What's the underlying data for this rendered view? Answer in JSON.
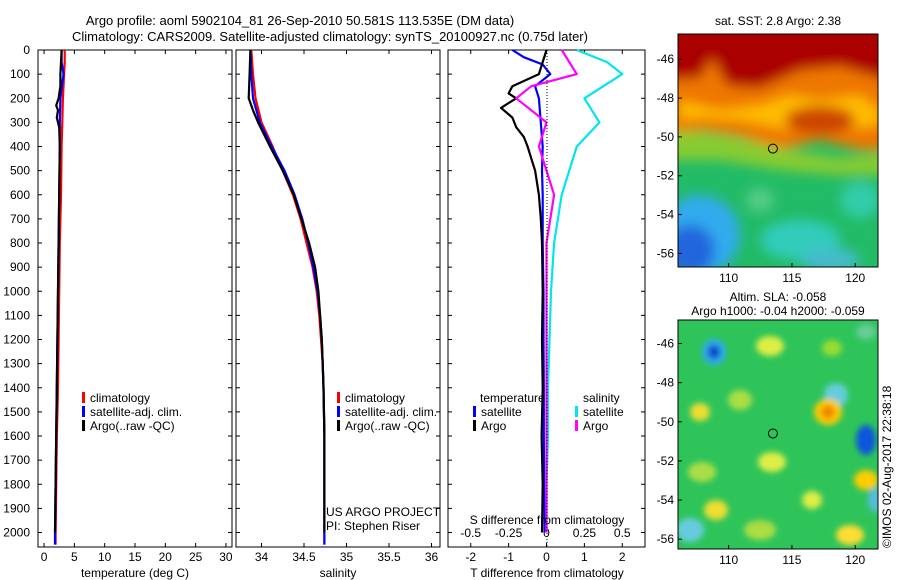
{
  "title_line1": "Argo profile: aoml 5902104_81 26-Sep-2010 50.581S 113.535E (DM data)",
  "title_line2": "Climatology: CARS2009. Satellite-adjusted climatology: synTS_20100927.nc (0.75d later)",
  "watermark": "©IMOS 02-Aug-2017 22:38:18",
  "project_line1": "US ARGO PROJECT",
  "project_line2": "PI: Stephen Riser",
  "colors": {
    "climatology": "#ff0000",
    "satellite": "#0000ff",
    "argo": "#000000",
    "sat_salinity": "#00e5ee",
    "argo_salinity": "#ff00ff"
  },
  "chart_data": [
    {
      "type": "line",
      "name": "temperature-profile",
      "xlabel": "temperature (deg C)",
      "ylabel": "",
      "xlim": [
        -1,
        31
      ],
      "ylim": [
        2060,
        0
      ],
      "xticks": [
        0,
        5,
        10,
        15,
        20,
        25,
        30
      ],
      "yticks": [
        0,
        100,
        200,
        300,
        400,
        500,
        600,
        700,
        800,
        900,
        1000,
        1100,
        1200,
        1300,
        1400,
        1500,
        1600,
        1700,
        1800,
        1900,
        2000
      ],
      "legend": [
        "climatology",
        "satellite-adj. clim.",
        "Argo(..raw -QC)"
      ],
      "series": [
        {
          "name": "climatology",
          "depth": [
            0,
            50,
            100,
            200,
            300,
            400,
            600,
            800,
            1000,
            1200,
            1400,
            1600,
            1800,
            2000,
            2050
          ],
          "values": [
            3.4,
            3.4,
            3.3,
            3.1,
            3.0,
            2.9,
            2.8,
            2.6,
            2.5,
            2.4,
            2.3,
            2.1,
            2.0,
            1.9,
            1.9
          ]
        },
        {
          "name": "satellite-adj. clim.",
          "depth": [
            0,
            50,
            100,
            200,
            300,
            400,
            600,
            800,
            1000,
            1200,
            1400,
            1600,
            1800,
            2000,
            2050
          ],
          "values": [
            2.9,
            2.9,
            3.2,
            2.7,
            2.6,
            2.6,
            2.5,
            2.4,
            2.3,
            2.2,
            2.1,
            2.0,
            1.9,
            1.8,
            1.8
          ]
        },
        {
          "name": "Argo(..raw -QC)",
          "depth": [
            0,
            50,
            100,
            150,
            200,
            230,
            250,
            280,
            320,
            400,
            600,
            800,
            1000,
            1200,
            1400,
            1600,
            1800,
            2000
          ],
          "values": [
            2.9,
            2.8,
            2.7,
            2.7,
            2.4,
            2.0,
            2.3,
            2.1,
            2.5,
            2.6,
            2.5,
            2.4,
            2.3,
            2.2,
            2.1,
            2.0,
            1.9,
            1.8
          ]
        }
      ]
    },
    {
      "type": "line",
      "name": "salinity-profile",
      "xlabel": "salinity",
      "xlim": [
        33.7,
        36.1
      ],
      "ylim": [
        2060,
        0
      ],
      "xticks": [
        34,
        34.5,
        35,
        35.5,
        36
      ],
      "xticklabels": [
        "34",
        "34.5",
        "35",
        "35.5",
        "36"
      ],
      "legend": [
        "climatology",
        "satellite-adj. clim.",
        "Argo(..raw -QC)"
      ],
      "series": [
        {
          "name": "climatology",
          "depth": [
            0,
            100,
            200,
            300,
            400,
            500,
            600,
            700,
            800,
            900,
            1000,
            1100,
            1200,
            1300,
            1400,
            1600,
            1800,
            2050
          ],
          "values": [
            33.88,
            33.9,
            33.93,
            34.0,
            34.13,
            34.25,
            34.37,
            34.46,
            34.53,
            34.6,
            34.65,
            34.68,
            34.7,
            34.72,
            34.73,
            34.74,
            34.74,
            34.74
          ]
        },
        {
          "name": "satellite-adj. clim.",
          "depth": [
            0,
            100,
            200,
            300,
            400,
            500,
            600,
            700,
            800,
            900,
            1000,
            1100,
            1200,
            1300,
            1400,
            1600,
            1800,
            2050
          ],
          "values": [
            33.87,
            33.88,
            33.9,
            33.98,
            34.12,
            34.27,
            34.39,
            34.48,
            34.55,
            34.61,
            34.66,
            34.69,
            34.71,
            34.72,
            34.73,
            34.74,
            34.74,
            34.74
          ]
        },
        {
          "name": "Argo(..raw -QC)",
          "depth": [
            0,
            100,
            200,
            250,
            300,
            400,
            500,
            600,
            700,
            800,
            900,
            1000,
            1100,
            1200,
            1300,
            1400,
            1600,
            1800,
            2000
          ],
          "values": [
            33.87,
            33.86,
            33.85,
            33.9,
            33.96,
            34.1,
            34.25,
            34.38,
            34.47,
            34.56,
            34.63,
            34.67,
            34.69,
            34.71,
            34.72,
            34.73,
            34.74,
            34.74,
            34.74
          ]
        }
      ]
    },
    {
      "type": "line",
      "name": "difference-profile",
      "xlabel": "T difference from climatology",
      "xlabel_top": "S difference from climatology",
      "xlim": [
        -2.6,
        2.6
      ],
      "ylim": [
        2060,
        0
      ],
      "xticks": [
        -2,
        -1,
        0,
        1,
        2
      ],
      "top_ticklabels": [
        "-0.5",
        "-0.25",
        "0",
        "0.25",
        "0.5"
      ],
      "legend_headers": [
        "temperature",
        "salinity"
      ],
      "legend": [
        "satellite",
        "Argo",
        "satellite",
        "Argo"
      ],
      "series": [
        {
          "name": "T satellite",
          "depth": [
            0,
            30,
            60,
            100,
            150,
            200,
            300,
            400,
            500,
            600,
            800,
            1000,
            1200,
            1400,
            1600,
            1800,
            2000
          ],
          "values": [
            -0.9,
            -0.6,
            -0.1,
            0.1,
            -0.3,
            -0.2,
            -0.15,
            -0.1,
            -0.12,
            -0.1,
            -0.1,
            -0.08,
            -0.08,
            -0.07,
            -0.07,
            -0.06,
            -0.05
          ]
        },
        {
          "name": "T Argo",
          "depth": [
            0,
            100,
            150,
            180,
            200,
            240,
            280,
            320,
            360,
            400,
            450,
            500,
            600,
            700,
            800,
            1000,
            1200,
            1400,
            1600,
            1800,
            2000
          ],
          "values": [
            0.0,
            -0.2,
            -0.9,
            -1.0,
            -0.8,
            -1.2,
            -0.9,
            -0.8,
            -0.6,
            -0.5,
            -0.4,
            -0.3,
            -0.2,
            -0.15,
            -0.12,
            -0.1,
            -0.12,
            -0.1,
            -0.13,
            -0.1,
            -0.12
          ]
        },
        {
          "name": "S satellite",
          "depth": [
            0,
            50,
            100,
            200,
            300,
            400,
            600,
            800,
            1000,
            1200,
            1400,
            1600,
            1800,
            2000
          ],
          "values": [
            0.2,
            0.4,
            0.5,
            0.25,
            0.35,
            0.2,
            0.1,
            0.05,
            0.03,
            0.02,
            0.01,
            0.01,
            0.0,
            0.0
          ]
        },
        {
          "name": "S Argo",
          "depth": [
            0,
            100,
            150,
            200,
            300,
            400,
            600,
            800,
            1000,
            1200,
            1400,
            1600,
            1800,
            2000
          ],
          "values": [
            0.1,
            0.2,
            -0.1,
            -0.2,
            0.0,
            -0.05,
            0.05,
            0.0,
            0.0,
            0.0,
            0.0,
            0.0,
            0.0,
            0.0
          ]
        }
      ]
    },
    {
      "type": "heatmap",
      "name": "sst-map",
      "title": "sat. SST: 2.8 Argo: 2.38",
      "xlim": [
        106,
        121.8
      ],
      "ylim": [
        -56.7,
        -44.7
      ],
      "xticks": [
        110,
        115,
        120
      ],
      "yticks": [
        -46,
        -48,
        -50,
        -52,
        -54,
        -56
      ],
      "marker": {
        "lon": 113.5,
        "lat": -50.6
      }
    },
    {
      "type": "heatmap",
      "name": "sla-map",
      "title_line1": "Altim. SLA: -0.058",
      "title_line2": "Argo h1000: -0.04 h2000: -0.059",
      "xlim": [
        106,
        121.8
      ],
      "ylim": [
        -56.5,
        -44.8
      ],
      "xticks": [
        110,
        115,
        120
      ],
      "yticks": [
        -46,
        -48,
        -50,
        -52,
        -54,
        -56
      ],
      "marker": {
        "lon": 113.5,
        "lat": -50.6
      }
    }
  ]
}
